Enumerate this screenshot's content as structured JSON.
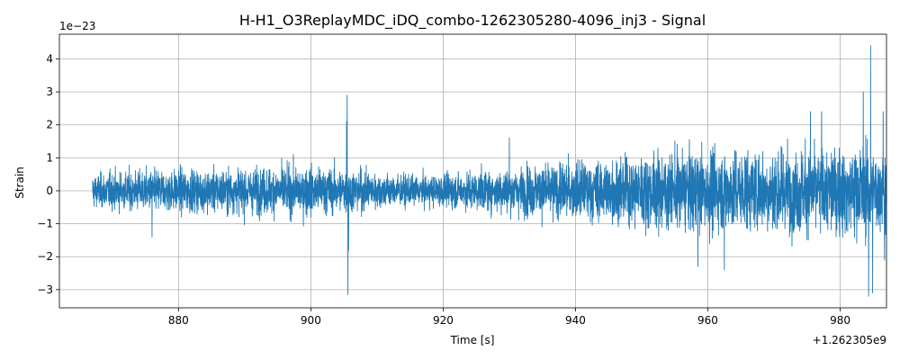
{
  "chart_data": {
    "type": "line",
    "title": "H-H1_O3ReplayMDC_iDQ_combo-1262305280-4096_inj3 - Signal",
    "xlabel": "Time [s]",
    "ylabel": "Strain",
    "x_offset_label": "+1.262305e9",
    "y_scale_label": "1e−23",
    "xlim": [
      862,
      987
    ],
    "ylim": [
      -3.55,
      4.75
    ],
    "xticks": [
      880,
      900,
      920,
      940,
      960,
      980
    ],
    "xtick_labels": [
      "880",
      "900",
      "920",
      "940",
      "960",
      "980"
    ],
    "yticks": [
      -3,
      -2,
      -1,
      0,
      1,
      2,
      3,
      4
    ],
    "ytick_labels": [
      "−3",
      "−2",
      "−1",
      "0",
      "1",
      "2",
      "3",
      "4"
    ],
    "grid": true,
    "line_color": "#1f77b4",
    "series": [
      {
        "x_start": 867,
        "x_end": 987,
        "envelope": [
          [
            867,
            0.8
          ],
          [
            870,
            0.9
          ],
          [
            875,
            1.0
          ],
          [
            880,
            1.05
          ],
          [
            885,
            1.05
          ],
          [
            890,
            1.1
          ],
          [
            895,
            1.15
          ],
          [
            900,
            1.2
          ],
          [
            904,
            1.1
          ],
          [
            908,
            1.0
          ],
          [
            912,
            0.8
          ],
          [
            916,
            0.7
          ],
          [
            920,
            0.8
          ],
          [
            925,
            0.95
          ],
          [
            930,
            1.1
          ],
          [
            935,
            1.3
          ],
          [
            940,
            1.4
          ],
          [
            945,
            1.55
          ],
          [
            950,
            1.75
          ],
          [
            955,
            1.9
          ],
          [
            960,
            2.0
          ],
          [
            965,
            2.0
          ],
          [
            970,
            2.05
          ],
          [
            975,
            2.1
          ],
          [
            980,
            2.1
          ],
          [
            983,
            2.3
          ],
          [
            986,
            2.1
          ],
          [
            987,
            2.0
          ]
        ],
        "spikes": [
          [
            905.5,
            2.9
          ],
          [
            905.6,
            -3.15
          ],
          [
            905.4,
            2.1
          ],
          [
            905.7,
            -1.8
          ],
          [
            984.6,
            4.4
          ],
          [
            984.3,
            -3.2
          ],
          [
            983.5,
            3.0
          ],
          [
            984.9,
            -3.1
          ],
          [
            975.5,
            2.4
          ],
          [
            977.2,
            2.4
          ],
          [
            962.5,
            -2.4
          ],
          [
            958.5,
            -2.3
          ],
          [
            986.5,
            2.4
          ],
          [
            986.7,
            -2.1
          ],
          [
            930,
            1.6
          ],
          [
            876,
            -1.4
          ]
        ]
      }
    ]
  }
}
